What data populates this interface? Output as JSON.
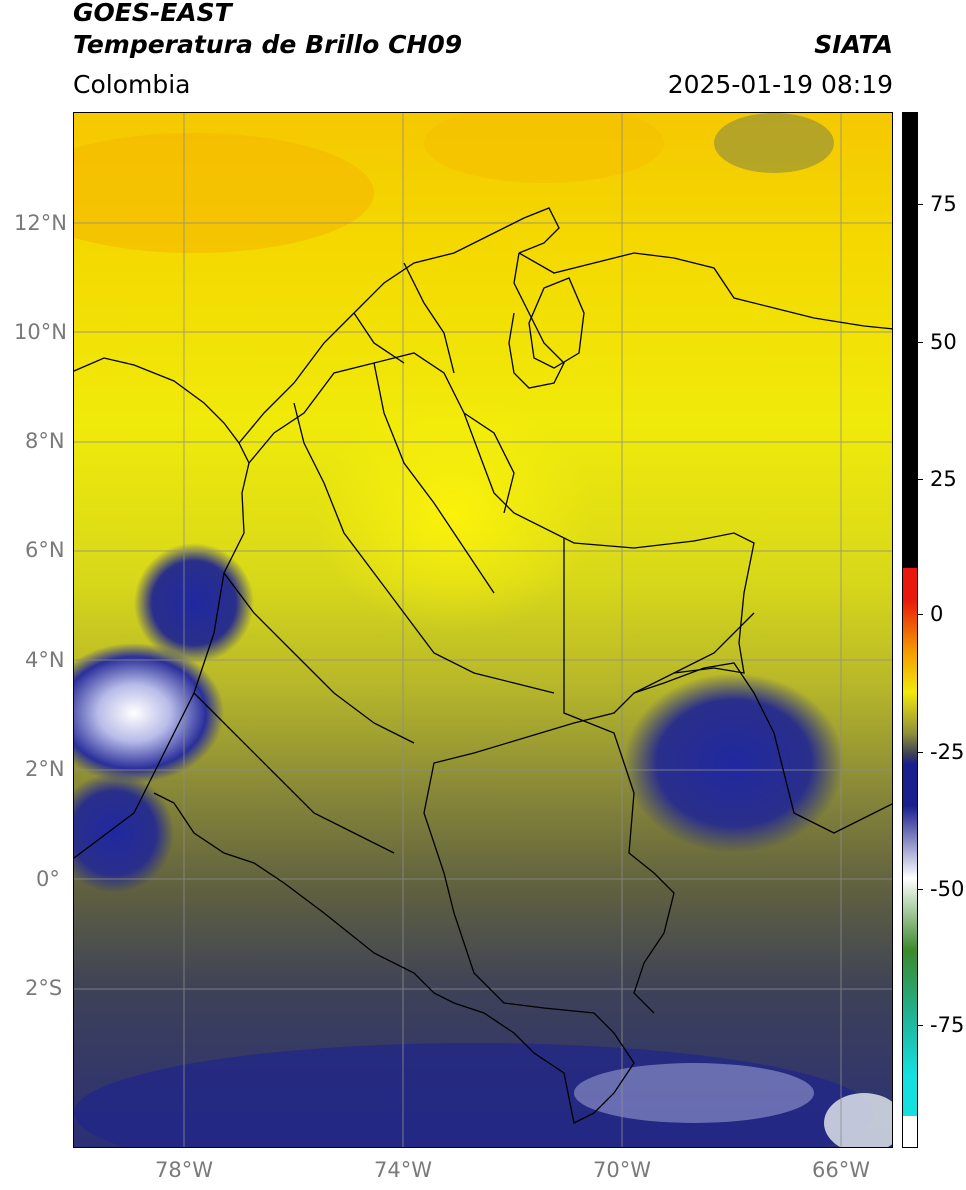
{
  "header": {
    "title_line1": "GOES-EAST",
    "title_line2": "Temperatura de Brillo CH09",
    "region": "Colombia",
    "org": "SIATA",
    "timestamp": "2025-01-19 08:19"
  },
  "map": {
    "lat_labels": [
      "12°N",
      "10°N",
      "8°N",
      "6°N",
      "4°N",
      "2°N",
      "0°",
      "2°S"
    ],
    "lon_labels": [
      "78°W",
      "74°W",
      "70°W",
      "66°W"
    ]
  },
  "colorbar": {
    "ticks": [
      "75",
      "50",
      "25",
      "0",
      "-25",
      "-50",
      "-75"
    ],
    "colors": {
      "warm": "#000000",
      "red": "#e8180c",
      "orange": "#f49a00",
      "yellow": "#f2e90a",
      "olive": "#8f8f3a",
      "slate": "#3d4158",
      "navy": "#1a1f8e",
      "white": "#ffffff",
      "green": "#3a8a2a",
      "teal": "#1fb8a0",
      "cyan": "#14e0e0"
    }
  }
}
